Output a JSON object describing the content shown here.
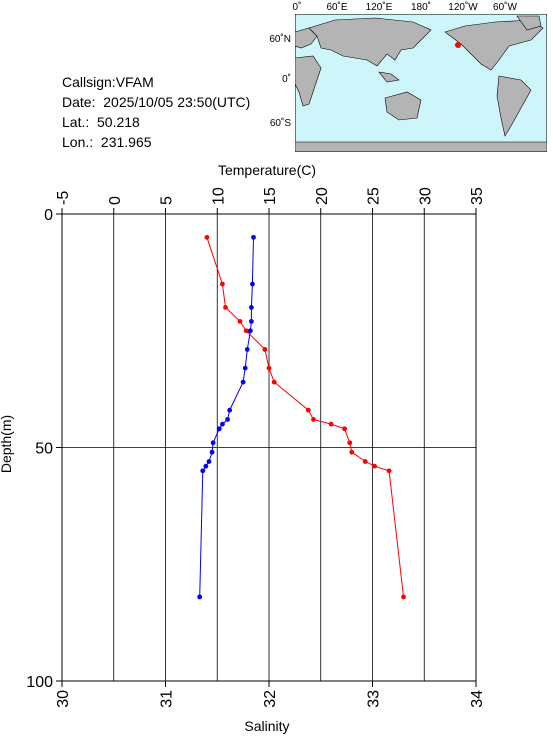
{
  "info": {
    "callsign": "Callsign:VFAM",
    "date": "Date:  2025/10/05 23:50(UTC)",
    "lat": "Lat.:  50.218",
    "lon": "Lon.:  231.965"
  },
  "map": {
    "top_labels": [
      "0˚",
      "60˚E",
      "120˚E",
      "180˚",
      "120˚W",
      "60˚W"
    ],
    "left_labels": [
      "60˚N",
      "0˚",
      "60˚S"
    ],
    "ocean_color": "#cdf5fa",
    "land_color": "#b4b4b4",
    "marker_color": "#ff0000",
    "marker_lon": 231.965,
    "marker_lat": 50.218
  },
  "chart_data": {
    "type": "line",
    "top_axis": {
      "label": "Temperature(C)",
      "range": [
        -5,
        35
      ],
      "ticks": [
        "-5",
        "0",
        "5",
        "10",
        "15",
        "20",
        "25",
        "30",
        "35"
      ]
    },
    "bottom_axis": {
      "label": "Salinity",
      "range": [
        30,
        34
      ],
      "ticks": [
        "30",
        "31",
        "32",
        "33",
        "34"
      ]
    },
    "left_axis": {
      "label": "Depth(m)",
      "range": [
        0,
        100
      ],
      "ticks": [
        "0",
        "50",
        "100"
      ],
      "inverted": true
    },
    "grid": true,
    "series": [
      {
        "axis": "temperature",
        "color": "#ff0000",
        "points": [
          {
            "x": 9.0,
            "depth": 5
          },
          {
            "x": 10.5,
            "depth": 15
          },
          {
            "x": 10.8,
            "depth": 20
          },
          {
            "x": 12.2,
            "depth": 23
          },
          {
            "x": 12.8,
            "depth": 25
          },
          {
            "x": 14.6,
            "depth": 29
          },
          {
            "x": 15.0,
            "depth": 33
          },
          {
            "x": 15.5,
            "depth": 36
          },
          {
            "x": 18.8,
            "depth": 42
          },
          {
            "x": 19.3,
            "depth": 44
          },
          {
            "x": 21.0,
            "depth": 45
          },
          {
            "x": 22.3,
            "depth": 46
          },
          {
            "x": 22.8,
            "depth": 49
          },
          {
            "x": 23.0,
            "depth": 51
          },
          {
            "x": 24.3,
            "depth": 53
          },
          {
            "x": 25.2,
            "depth": 54
          },
          {
            "x": 26.6,
            "depth": 55
          },
          {
            "x": 28.0,
            "depth": 82
          }
        ]
      },
      {
        "axis": "salinity",
        "color": "#0000ff",
        "points": [
          {
            "x": 31.85,
            "depth": 5
          },
          {
            "x": 31.84,
            "depth": 15
          },
          {
            "x": 31.83,
            "depth": 20
          },
          {
            "x": 31.83,
            "depth": 23
          },
          {
            "x": 31.82,
            "depth": 25
          },
          {
            "x": 31.79,
            "depth": 29
          },
          {
            "x": 31.77,
            "depth": 33
          },
          {
            "x": 31.75,
            "depth": 36
          },
          {
            "x": 31.62,
            "depth": 42
          },
          {
            "x": 31.6,
            "depth": 44
          },
          {
            "x": 31.55,
            "depth": 45
          },
          {
            "x": 31.52,
            "depth": 46
          },
          {
            "x": 31.46,
            "depth": 49
          },
          {
            "x": 31.45,
            "depth": 51
          },
          {
            "x": 31.42,
            "depth": 53
          },
          {
            "x": 31.39,
            "depth": 54
          },
          {
            "x": 31.36,
            "depth": 55
          },
          {
            "x": 31.33,
            "depth": 82
          }
        ]
      }
    ]
  }
}
